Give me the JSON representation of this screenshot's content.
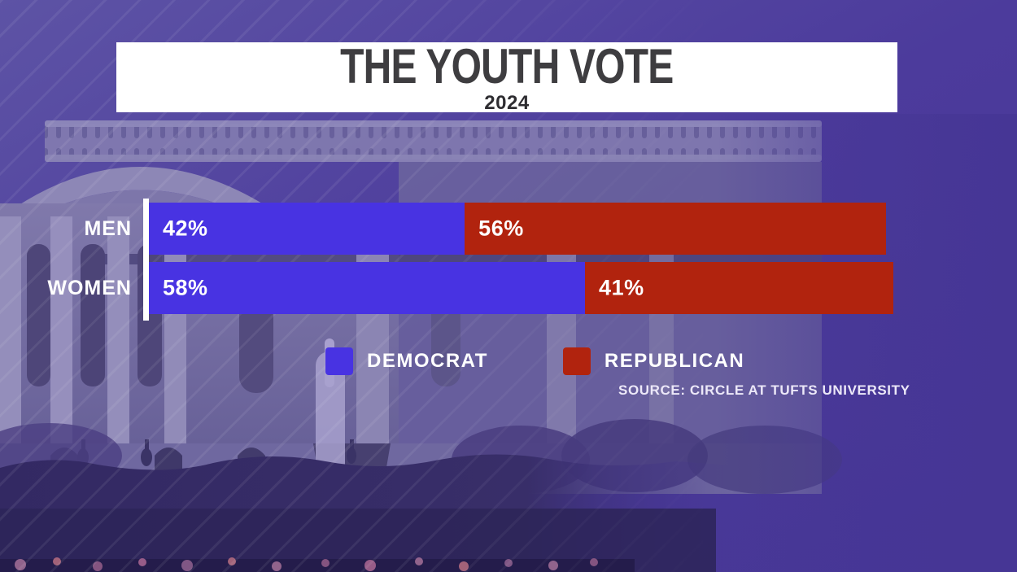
{
  "title": {
    "heading": "THE YOUTH VOTE",
    "subheading": "2024"
  },
  "chart_data": {
    "type": "bar",
    "orientation": "horizontal",
    "stacked": true,
    "title": "THE YOUTH VOTE",
    "subtitle": "2024",
    "categories": [
      "MEN",
      "WOMEN"
    ],
    "series": [
      {
        "name": "DEMOCRAT",
        "color": "#4833E2",
        "values": [
          42,
          58
        ],
        "labels": [
          "42%",
          "58%"
        ]
      },
      {
        "name": "REPUBLICAN",
        "color": "#B1230E",
        "values": [
          56,
          41
        ],
        "labels": [
          "56%",
          "41%"
        ]
      }
    ],
    "xmax": 99,
    "grid": false,
    "legend_position": "bottom",
    "axis_color": "#FFFFFF"
  },
  "source": {
    "text": "SOURCE: CIRCLE AT TUFTS UNIVERSITY"
  },
  "background": {
    "scene": "White House south portico with fountain, hedge and garden, purple tint",
    "base_color": "#463695",
    "banner_color": "#FFFFFF",
    "title_text_color": "#3E3D40"
  }
}
